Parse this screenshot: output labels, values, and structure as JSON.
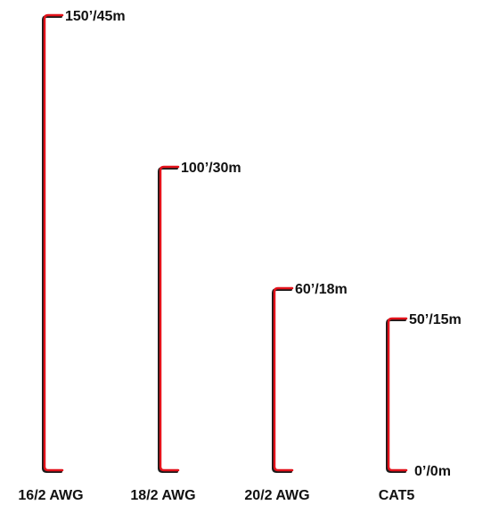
{
  "chart_data": {
    "type": "bar",
    "title": "",
    "xlabel": "",
    "ylabel": "",
    "ylim": [
      0,
      150
    ],
    "categories": [
      "16/2 AWG",
      "18/2 AWG",
      "20/2 AWG",
      "CAT5"
    ],
    "values": [
      150,
      100,
      60,
      50
    ],
    "value_labels": [
      "150’/45m",
      "100’/30m",
      "60’/18m",
      "50’/15m"
    ],
    "baseline_label": "0’/0m",
    "grid": false,
    "legend": "none",
    "colors": {
      "bracket_main": "#e3121b",
      "bracket_shadow": "#1a1a1a",
      "text": "#111111",
      "background": "#ffffff"
    }
  }
}
